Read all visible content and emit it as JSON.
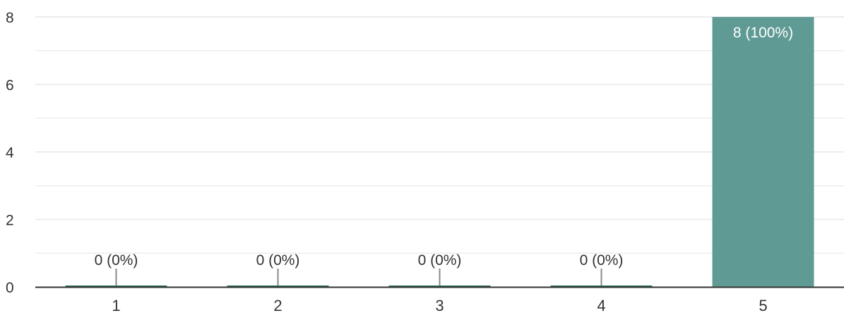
{
  "chart_data": {
    "type": "bar",
    "categories": [
      "1",
      "2",
      "3",
      "4",
      "5"
    ],
    "values": [
      0,
      0,
      0,
      0,
      8
    ],
    "data_labels": [
      "0 (0%)",
      "0 (0%)",
      "0 (0%)",
      "0 (0%)",
      "8 (100%)"
    ],
    "y_ticks": [
      "0",
      "2",
      "4",
      "6",
      "8"
    ],
    "ylim": [
      0,
      8
    ],
    "grid": true,
    "colors": {
      "bar": "#5f9b94",
      "zero_bar": "#2e6b5e",
      "leader_line": "#8a8a8a",
      "axis": "#333333",
      "grid": "#ececec",
      "text": "#333333",
      "inside_label": "#ffffff"
    }
  }
}
